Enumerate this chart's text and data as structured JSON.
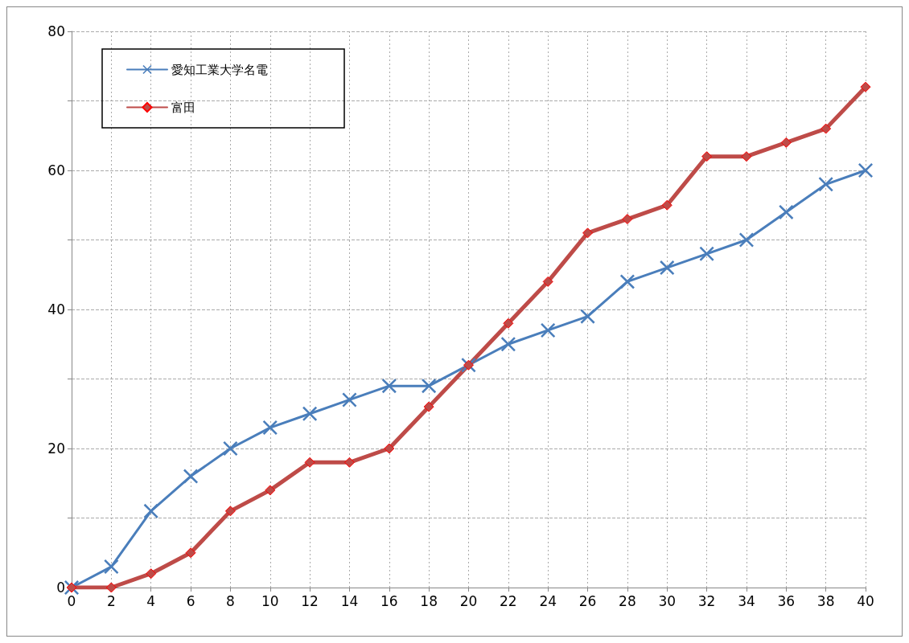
{
  "chart_data": {
    "type": "line",
    "x": [
      0,
      2,
      4,
      6,
      8,
      10,
      12,
      14,
      16,
      18,
      20,
      22,
      24,
      26,
      28,
      30,
      32,
      34,
      36,
      38,
      40
    ],
    "series": [
      {
        "name": "愛知工業大学名電",
        "color": "#4a7ebb",
        "marker": "cross",
        "values": [
          0,
          3,
          11,
          16,
          20,
          23,
          25,
          27,
          29,
          29,
          32,
          35,
          37,
          39,
          44,
          46,
          48,
          50,
          54,
          58,
          60
        ]
      },
      {
        "name": "富田",
        "color": "#be4b48",
        "marker": "diamond",
        "values": [
          0,
          0,
          2,
          5,
          11,
          14,
          18,
          18,
          20,
          26,
          32,
          38,
          44,
          51,
          53,
          55,
          62,
          62,
          64,
          66,
          72
        ]
      }
    ],
    "xlim": [
      0,
      40
    ],
    "xticks": [
      0,
      2,
      4,
      6,
      8,
      10,
      12,
      14,
      16,
      18,
      20,
      22,
      24,
      26,
      28,
      30,
      32,
      34,
      36,
      38,
      40
    ],
    "ylim": [
      0,
      80
    ],
    "yticks": [
      0,
      {
        "value": 10,
        "label": null
      },
      20,
      {
        "value": 30,
        "label": null
      },
      40,
      {
        "value": 50,
        "label": null
      },
      60,
      {
        "value": 70,
        "label": null
      },
      80
    ],
    "grid": true,
    "legend": "top left",
    "line_style": "solid"
  }
}
